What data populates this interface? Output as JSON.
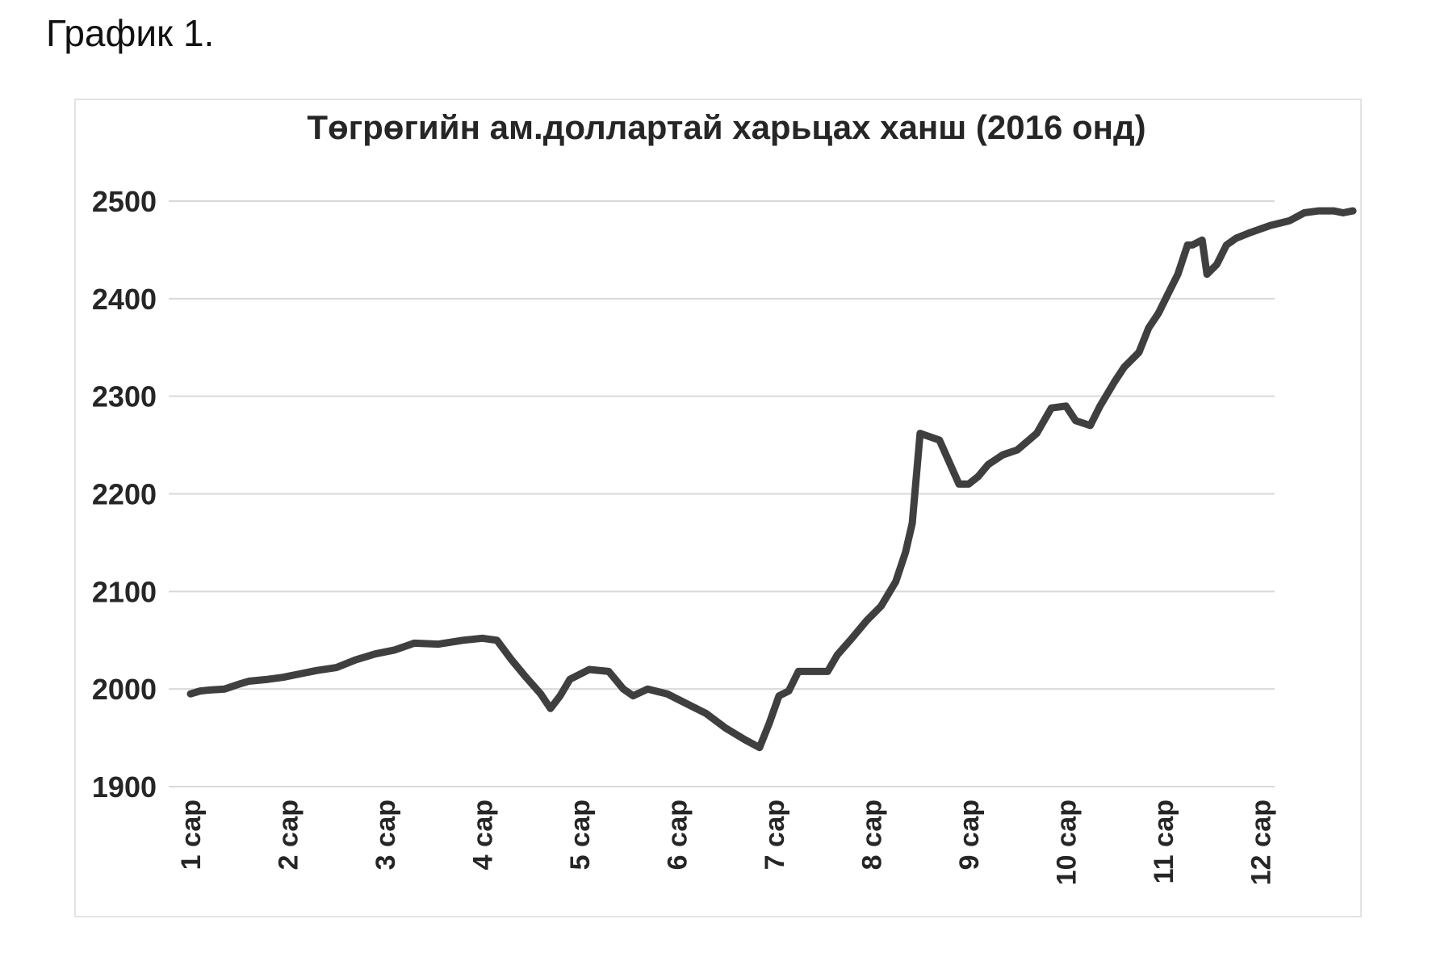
{
  "caption": "График 1.",
  "colors": {
    "line": "#3f3f3f",
    "grid": "#d9d9d9",
    "text": "#262626",
    "frame": "#e2e2e2"
  },
  "chart_data": {
    "type": "line",
    "title": "Төгрөгийн ам.доллартай харьцах ханш (2016 онд)",
    "xlabel": "",
    "ylabel": "",
    "ylim": [
      1900,
      2500
    ],
    "yticks": [
      1900,
      2000,
      2100,
      2200,
      2300,
      2400,
      2500
    ],
    "grid": true,
    "legend": "none",
    "categories": [
      "1 сар",
      "2 сар",
      "3 сар",
      "4 сар",
      "5 сар",
      "6 сар",
      "7 сар",
      "8 сар",
      "9 сар",
      "10 сар",
      "11 сар",
      "12 сар"
    ],
    "x_range": [
      1,
      12.95
    ],
    "series": [
      {
        "x": [
          1.0,
          1.1,
          1.2,
          1.35,
          1.5,
          1.6,
          1.8,
          1.95,
          2.1,
          2.3,
          2.5,
          2.7,
          2.9,
          3.1,
          3.3,
          3.55,
          3.8,
          4.0,
          4.15,
          4.3,
          4.45,
          4.6,
          4.7,
          4.8,
          4.9,
          5.1,
          5.3,
          5.45,
          5.55,
          5.7,
          5.9,
          6.1,
          6.3,
          6.5,
          6.7,
          6.85,
          6.95,
          7.05,
          7.15,
          7.25,
          7.4,
          7.55,
          7.65,
          7.8,
          7.95,
          8.1,
          8.25,
          8.35,
          8.42,
          8.5,
          8.7,
          8.9,
          9.0,
          9.1,
          9.2,
          9.35,
          9.5,
          9.7,
          9.85,
          10.0,
          10.1,
          10.25,
          10.35,
          10.5,
          10.6,
          10.75,
          10.85,
          10.95,
          11.05,
          11.15,
          11.25,
          11.3,
          11.4,
          11.45,
          11.55,
          11.65,
          11.75,
          11.9,
          12.1,
          12.3,
          12.45,
          12.6,
          12.75,
          12.85,
          12.95
        ],
        "values": [
          1995,
          1998,
          1999,
          2000,
          2005,
          2008,
          2010,
          2012,
          2015,
          2019,
          2022,
          2030,
          2036,
          2040,
          2047,
          2046,
          2050,
          2052,
          2050,
          2030,
          2012,
          1995,
          1980,
          1993,
          2010,
          2020,
          2018,
          2000,
          1993,
          2000,
          1995,
          1985,
          1975,
          1960,
          1948,
          1940,
          1965,
          1993,
          1998,
          2018,
          2018,
          2018,
          2035,
          2052,
          2070,
          2085,
          2110,
          2140,
          2170,
          2262,
          2255,
          2210,
          2210,
          2218,
          2230,
          2240,
          2245,
          2262,
          2288,
          2290,
          2275,
          2270,
          2290,
          2315,
          2330,
          2345,
          2370,
          2385,
          2405,
          2425,
          2455,
          2455,
          2460,
          2425,
          2435,
          2455,
          2462,
          2468,
          2475,
          2480,
          2488,
          2490,
          2490,
          2488,
          2490
        ]
      }
    ]
  }
}
